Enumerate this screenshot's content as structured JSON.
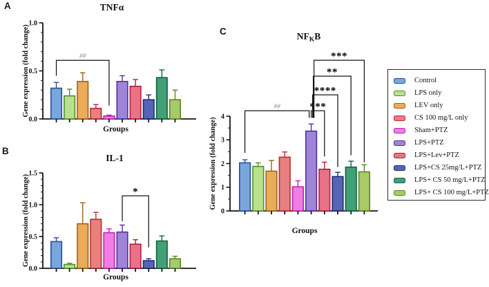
{
  "figure": {
    "background": "#ffffff",
    "axis_color": "#151515",
    "legend": {
      "items": [
        {
          "label": "Control",
          "fill": "#79A7DC",
          "border": "#2C4E9B"
        },
        {
          "label": "LPS only",
          "fill": "#B9E18C",
          "border": "#4F8F2B"
        },
        {
          "label": "LEV only",
          "fill": "#EBAC59",
          "border": "#97651A"
        },
        {
          "label": "CS 100 mg/L only",
          "fill": "#E97F7F",
          "border": "#BB2B31"
        },
        {
          "label": "Sham+PTZ",
          "fill": "#EF7DE4",
          "border": "#BD24AE"
        },
        {
          "label": "LPS+PTZ",
          "fill": "#9F85D9",
          "border": "#51309F"
        },
        {
          "label": "LPS+Lev+PTZ",
          "fill": "#E97287",
          "border": "#AC1F3E"
        },
        {
          "label": "LPS+CS 25mg/L+PTZ",
          "fill": "#5564B4",
          "border": "#1E2B77"
        },
        {
          "label": "LPS+ CS 50 mg/L+PTZ",
          "fill": "#41A075",
          "border": "#156140"
        },
        {
          "label": "LPS+ CS 100 mg/L+PTZ",
          "fill": "#A7CB69",
          "border": "#5C8523"
        }
      ]
    }
  },
  "chart_data": [
    {
      "type": "bar",
      "panel_label": "A",
      "title": "TNFα",
      "title_parts": [
        {
          "t": "TNFα"
        }
      ],
      "xlabel": "Groups",
      "ylabel": "Gene expression (fold change)",
      "ylim": [
        0,
        1.0
      ],
      "yticks": [
        "0.0",
        "0.5",
        "1.0"
      ],
      "minor_step": 0.1,
      "grid": false,
      "categories": [
        "Control",
        "LPS only",
        "LEV only",
        "CS 100 mg/L only",
        "Sham+PTZ",
        "LPS+PTZ",
        "LPS+Lev+PTZ",
        "LPS+CS 25mg/L+PTZ",
        "LPS+ CS 50 mg/L+PTZ",
        "LPS+ CS 100 mg/L+PTZ"
      ],
      "values": [
        0.32,
        0.24,
        0.39,
        0.11,
        0.03,
        0.39,
        0.34,
        0.2,
        0.43,
        0.2
      ],
      "errors": [
        0.06,
        0.07,
        0.09,
        0.04,
        0.01,
        0.06,
        0.07,
        0.05,
        0.08,
        0.1
      ],
      "significance": [
        {
          "label": "##",
          "from": 0,
          "to": 4,
          "y": 0.61,
          "from_drop": 0.45,
          "to_drop": 0.14
        }
      ]
    },
    {
      "type": "bar",
      "panel_label": "B",
      "title": "IL-1",
      "title_parts": [
        {
          "t": "IL-1"
        }
      ],
      "xlabel": "Groups",
      "ylabel": "Gene expression (fold change)",
      "ylim": [
        0,
        1.5
      ],
      "yticks": [
        "0.0",
        "0.5",
        "1.0",
        "1.5"
      ],
      "minor_step": 0.1,
      "grid": false,
      "categories": [
        "Control",
        "LPS only",
        "LEV only",
        "CS 100 mg/L only",
        "Sham+PTZ",
        "LPS+PTZ",
        "LPS+Lev+PTZ",
        "LPS+CS 25mg/L+PTZ",
        "LPS+ CS 50 mg/L+PTZ",
        "LPS+ CS 100 mg/L+PTZ"
      ],
      "values": [
        0.42,
        0.06,
        0.7,
        0.77,
        0.56,
        0.57,
        0.38,
        0.12,
        0.43,
        0.15
      ],
      "errors": [
        0.06,
        0.02,
        0.33,
        0.11,
        0.06,
        0.11,
        0.07,
        0.03,
        0.08,
        0.04
      ],
      "significance": [
        {
          "label": "*",
          "from": 5,
          "to": 7,
          "y": 1.14,
          "from_drop": 0.74,
          "to_drop": 0.33
        }
      ]
    },
    {
      "type": "bar",
      "panel_label": "C",
      "title": "NFKB",
      "title_parts": [
        {
          "t": "NF"
        },
        {
          "t": "K",
          "sub": true
        },
        {
          "t": "B"
        }
      ],
      "xlabel": "Groups",
      "ylabel": "Gene expression (fold change)",
      "ylim": [
        0,
        4
      ],
      "yticks": [
        "0",
        "1",
        "2",
        "3",
        "4"
      ],
      "minor_step": 0.5,
      "grid": false,
      "categories": [
        "Control",
        "LPS only",
        "LEV only",
        "CS 100 mg/L only",
        "Sham+PTZ",
        "LPS+PTZ",
        "LPS+Lev+PTZ",
        "LPS+CS 25mg/L+PTZ",
        "LPS+ CS 50 mg/L+PTZ",
        "LPS+ CS 100 mg/L+PTZ"
      ],
      "values": [
        2.03,
        1.88,
        1.68,
        2.27,
        1.02,
        3.37,
        1.76,
        1.45,
        1.85,
        1.65
      ],
      "errors": [
        0.13,
        0.15,
        0.45,
        0.22,
        0.25,
        0.3,
        0.3,
        0.18,
        0.25,
        0.3
      ],
      "significance": [
        {
          "label": "##",
          "from": 0,
          "to": 5,
          "y": 4.23,
          "from_drop": 2.45,
          "to_drop": 3.93,
          "to_dx": -3
        },
        {
          "label": "***",
          "from": 5,
          "to": 6,
          "y": 4.23,
          "from_drop": 3.93,
          "to_drop": 2.3,
          "from_dx": 0
        },
        {
          "label": "****",
          "from": 5,
          "to": 7,
          "y": 4.9,
          "from_drop": 3.93,
          "to_drop": 1.85,
          "from_dx": 2
        },
        {
          "label": "**",
          "from": 5,
          "to": 8,
          "y": 5.69,
          "from_drop": 3.93,
          "to_drop": 2.35,
          "from_dx": 3
        },
        {
          "label": "***",
          "from": 5,
          "to": 9,
          "y": 6.36,
          "from_drop": 3.93,
          "to_drop": 2.05,
          "from_dx": 4
        }
      ]
    }
  ]
}
